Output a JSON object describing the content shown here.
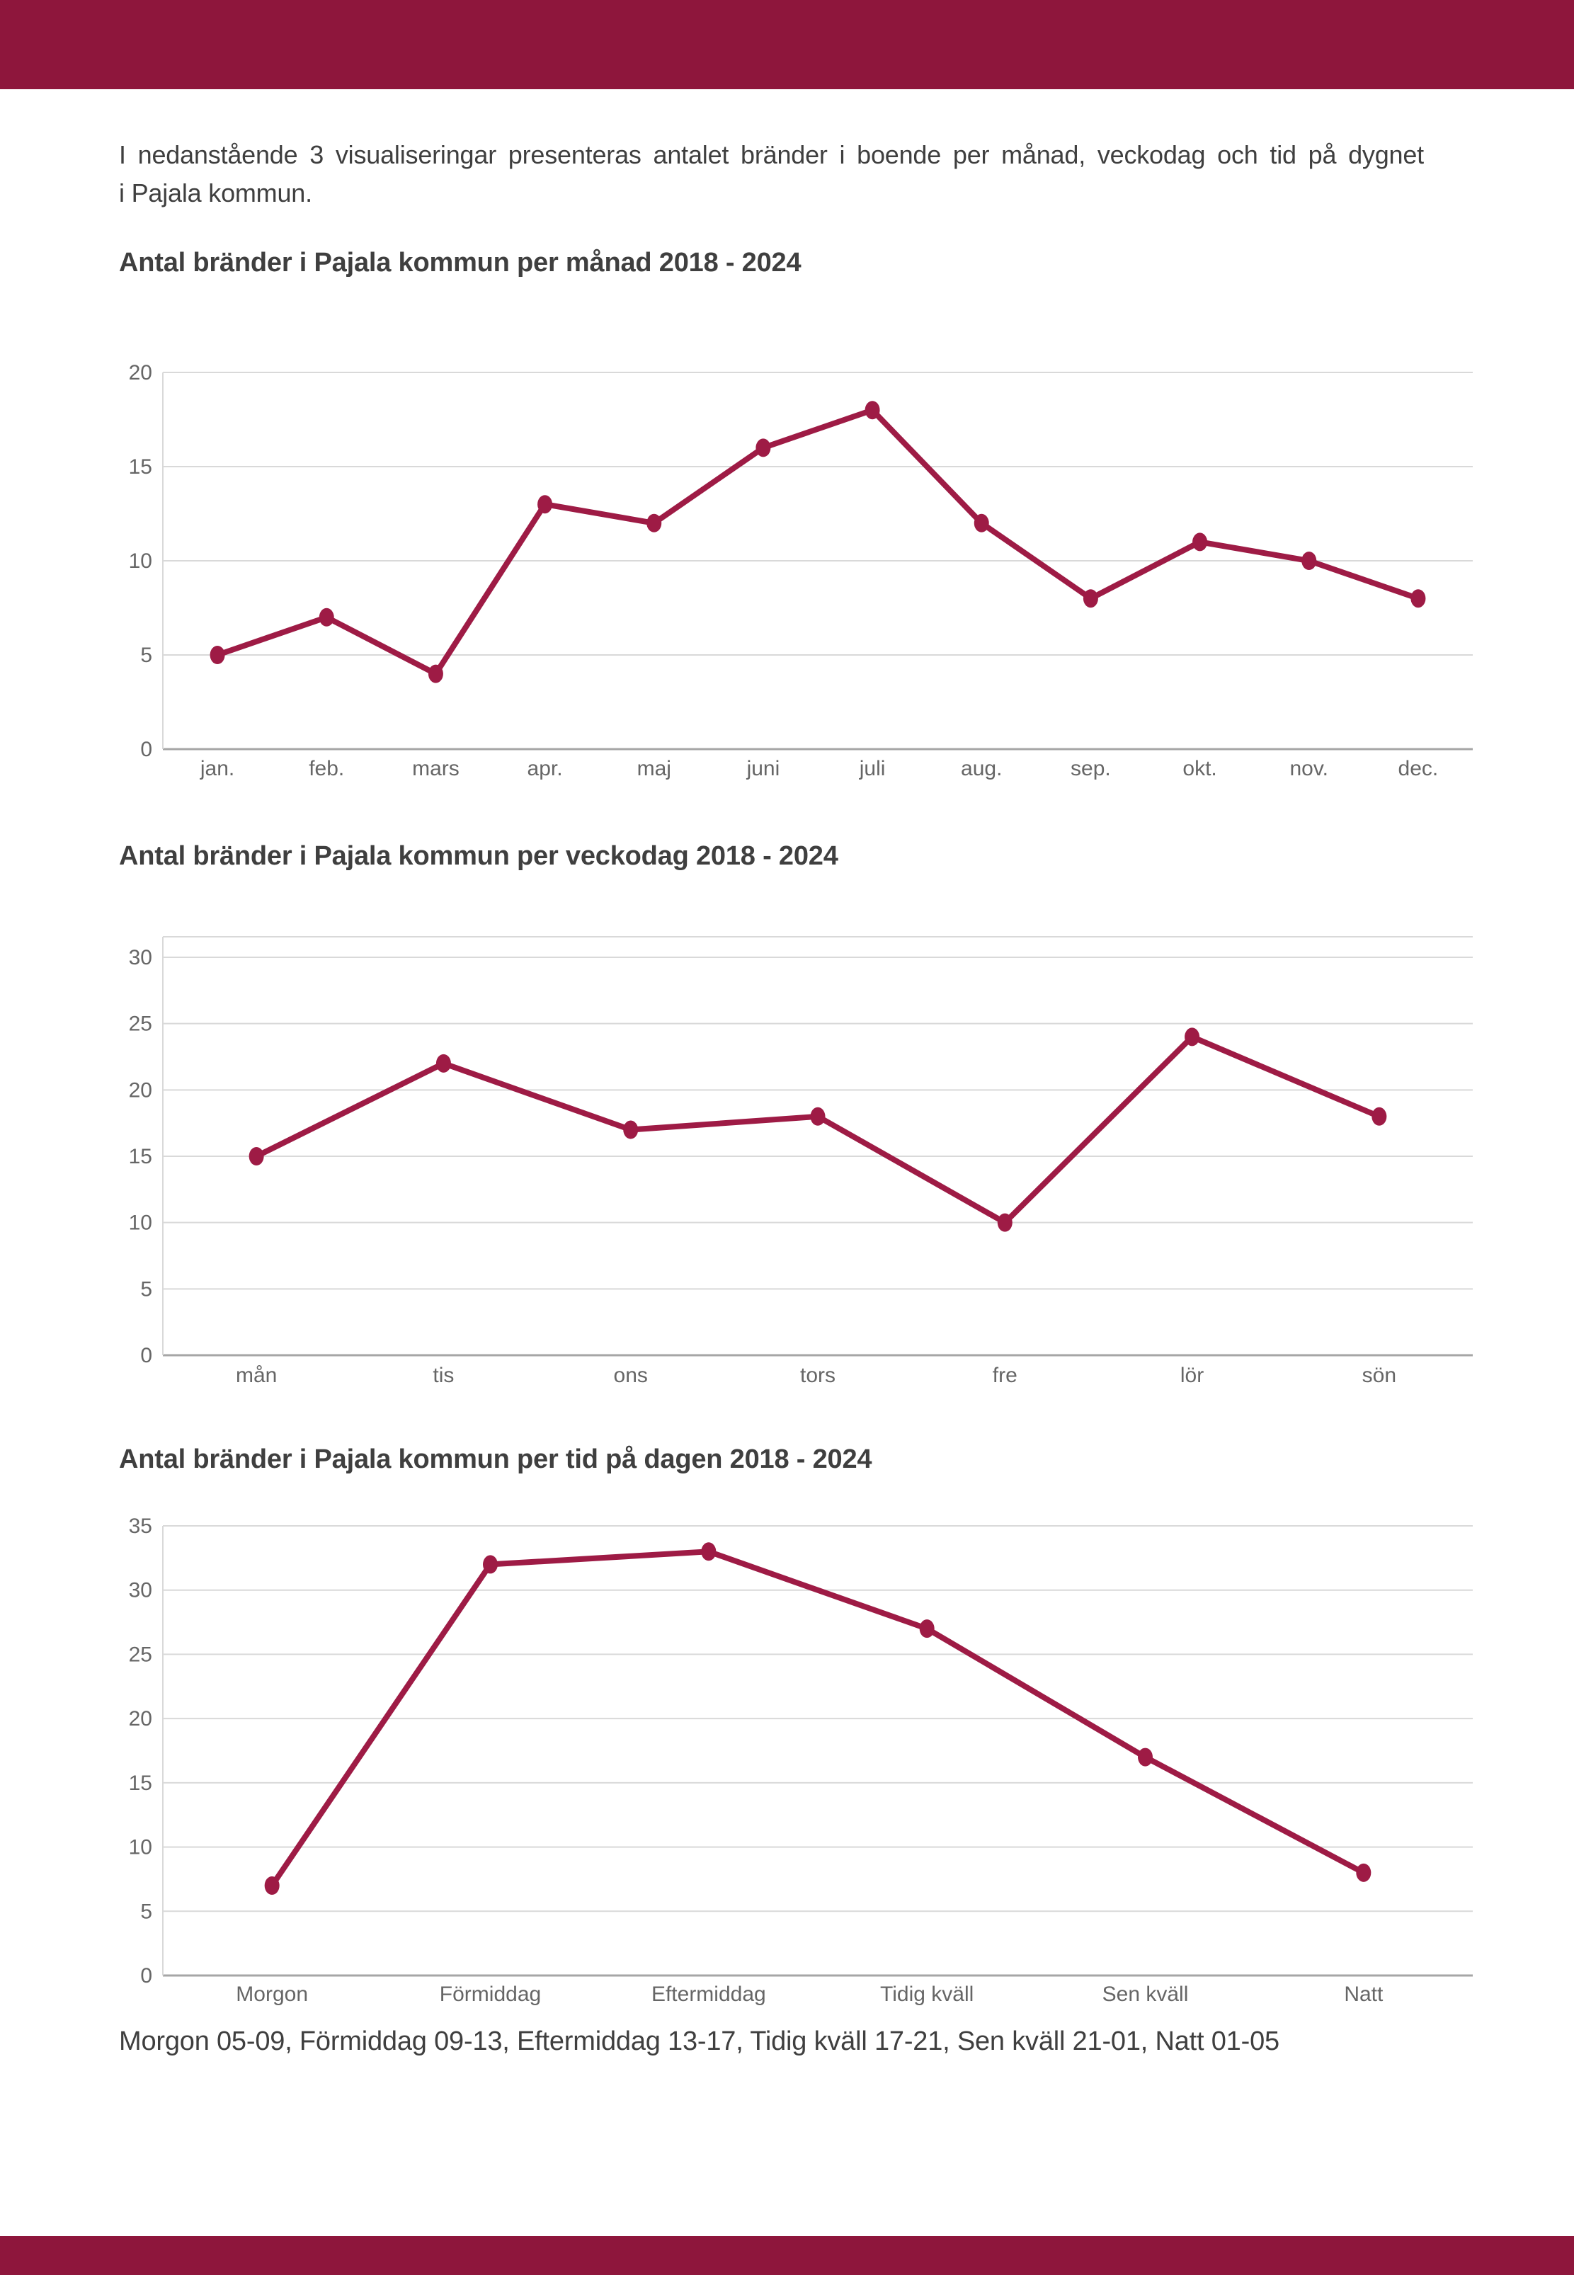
{
  "page": {
    "intro": {
      "line1": "I nedanstående 3 visualiseringar presenteras antalet bränder i boende per månad, veckodag och tid på dygnet",
      "line2": "i Pajala kommun."
    },
    "footer_note": "Morgon 05-09, Förmiddag 09-13, Eftermiddag 13-17, Tidig kväll 17-21, Sen kväll 21-01, Natt 01-05",
    "colors": {
      "header_bar": "#8e163c",
      "line": "#9e1b45",
      "gridline": "#d9d9d9",
      "axis_baseline": "#a6a6a6",
      "tick_label": "#666666",
      "text": "#3f3f3f"
    }
  },
  "chart_data": [
    {
      "type": "line",
      "title": "Antal bränder i Pajala kommun per månad 2018 - 2024",
      "categories": [
        "jan.",
        "feb.",
        "mars",
        "apr.",
        "maj",
        "juni",
        "juli",
        "aug.",
        "sep.",
        "okt.",
        "nov.",
        "dec."
      ],
      "values": [
        5,
        7,
        4,
        13,
        12,
        16,
        18,
        12,
        8,
        11,
        10,
        8
      ],
      "xlabel": "",
      "ylabel": "",
      "ylim": [
        0,
        20
      ],
      "ytick_step": 5,
      "grid": true,
      "legend": "none",
      "line_color": "#9e1b45",
      "markers": true
    },
    {
      "type": "line",
      "title": "Antal bränder i Pajala kommun per veckodag 2018 - 2024",
      "categories": [
        "mån",
        "tis",
        "ons",
        "tors",
        "fre",
        "lör",
        "sön"
      ],
      "values": [
        15,
        22,
        17,
        18,
        10,
        24,
        18
      ],
      "xlabel": "",
      "ylabel": "",
      "ylim": [
        0,
        30
      ],
      "ytick_step": 5,
      "grid": true,
      "legend": "none",
      "line_color": "#9e1b45",
      "markers": true
    },
    {
      "type": "line",
      "title": "Antal bränder i Pajala kommun per tid på dagen 2018 - 2024",
      "categories": [
        "Morgon",
        "Förmiddag",
        "Eftermiddag",
        "Tidig kväll",
        "Sen kväll",
        "Natt"
      ],
      "values": [
        7,
        32,
        33,
        27,
        17,
        8
      ],
      "xlabel": "",
      "ylabel": "",
      "ylim": [
        0,
        35
      ],
      "ytick_step": 5,
      "grid": true,
      "legend": "none",
      "line_color": "#9e1b45",
      "markers": true
    }
  ]
}
